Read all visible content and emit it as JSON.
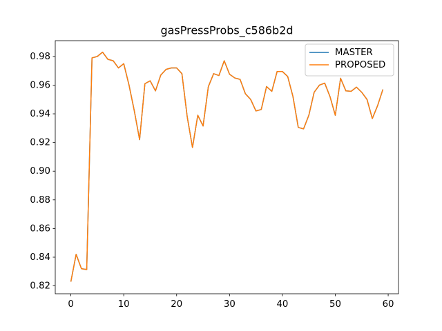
{
  "chart_data": {
    "type": "line",
    "title": "gasPressProbs_c586b2d",
    "x": [
      0,
      1,
      2,
      3,
      4,
      5,
      6,
      7,
      8,
      9,
      10,
      11,
      12,
      13,
      14,
      15,
      16,
      17,
      18,
      19,
      20,
      21,
      22,
      23,
      24,
      25,
      26,
      27,
      28,
      29,
      30,
      31,
      32,
      33,
      34,
      35,
      36,
      37,
      38,
      39,
      40,
      41,
      42,
      43,
      44,
      45,
      46,
      47,
      48,
      49,
      50,
      51,
      52,
      53,
      54,
      55,
      56,
      57,
      58,
      59
    ],
    "series": [
      {
        "name": "MASTER",
        "color": "#1f77b4",
        "values": [
          0.8229,
          0.842,
          0.832,
          0.8314,
          0.979,
          0.98,
          0.983,
          0.978,
          0.977,
          0.972,
          0.975,
          0.96,
          0.942,
          0.922,
          0.961,
          0.963,
          0.956,
          0.967,
          0.971,
          0.972,
          0.972,
          0.968,
          0.938,
          0.9165,
          0.939,
          0.9315,
          0.959,
          0.968,
          0.9667,
          0.977,
          0.9676,
          0.965,
          0.964,
          0.954,
          0.95,
          0.942,
          0.943,
          0.959,
          0.9557,
          0.9695,
          0.9695,
          0.966,
          0.952,
          0.9305,
          0.9295,
          0.939,
          0.955,
          0.96,
          0.9614,
          0.952,
          0.939,
          0.9648,
          0.956,
          0.9557,
          0.9586,
          0.955,
          0.95,
          0.9367,
          0.9457,
          0.957
        ]
      },
      {
        "name": "PROPOSED",
        "color": "#ff7f0e",
        "values": [
          0.8229,
          0.842,
          0.832,
          0.8314,
          0.979,
          0.98,
          0.983,
          0.978,
          0.977,
          0.972,
          0.975,
          0.96,
          0.942,
          0.922,
          0.961,
          0.963,
          0.956,
          0.967,
          0.971,
          0.972,
          0.972,
          0.968,
          0.938,
          0.9165,
          0.939,
          0.9315,
          0.959,
          0.968,
          0.9667,
          0.977,
          0.9676,
          0.965,
          0.964,
          0.954,
          0.95,
          0.942,
          0.943,
          0.959,
          0.9557,
          0.9695,
          0.9695,
          0.966,
          0.952,
          0.9305,
          0.9295,
          0.939,
          0.955,
          0.96,
          0.9614,
          0.952,
          0.939,
          0.9648,
          0.956,
          0.9557,
          0.9586,
          0.955,
          0.95,
          0.9367,
          0.9457,
          0.957
        ]
      }
    ],
    "xlim": [
      -2.95,
      61.95
    ],
    "xticks": [
      0,
      10,
      20,
      30,
      40,
      50,
      60
    ],
    "ylim": [
      0.8145,
      0.991
    ],
    "yticks": [
      0.82,
      0.84,
      0.86,
      0.88,
      {
        "value": 0.9,
        "label": "0.90"
      },
      0.92,
      0.94,
      0.96,
      0.98
    ],
    "legend": "upper right",
    "grid": false
  }
}
